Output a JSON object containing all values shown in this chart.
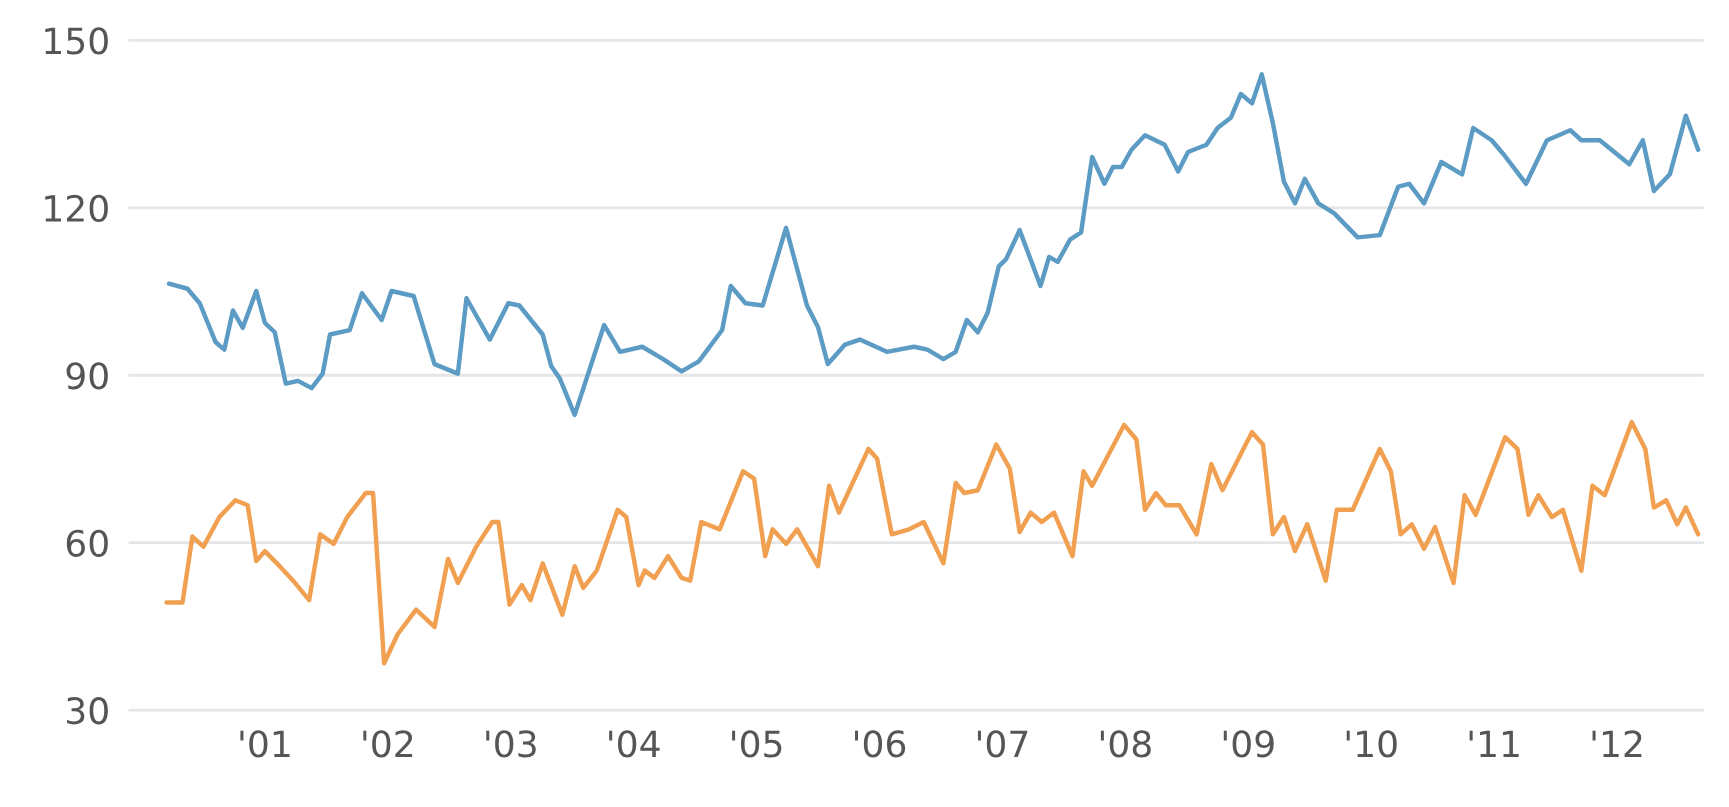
{
  "chart_data": {
    "type": "line",
    "xlim": [
      1999.9,
      2012.7
    ],
    "xticks": [
      {
        "value": 2001,
        "label": "'01"
      },
      {
        "value": 2002,
        "label": "'02"
      },
      {
        "value": 2003,
        "label": "'03"
      },
      {
        "value": 2004,
        "label": "'04"
      },
      {
        "value": 2005,
        "label": "'05"
      },
      {
        "value": 2006,
        "label": "'06"
      },
      {
        "value": 2007,
        "label": "'07"
      },
      {
        "value": 2008,
        "label": "'08"
      },
      {
        "value": 2009,
        "label": "'09"
      },
      {
        "value": 2010,
        "label": "'10"
      },
      {
        "value": 2011,
        "label": "'11"
      },
      {
        "value": 2012,
        "label": "'12"
      }
    ],
    "ylim": [
      30,
      150
    ],
    "yticks": [
      30,
      60,
      90,
      120,
      150
    ],
    "grid": "y",
    "marker": "none",
    "line_style": "solid",
    "series": [
      {
        "color": "#5b9bc4",
        "x": [
          2000.22,
          2000.37,
          2000.47,
          2000.6,
          2000.67,
          2000.74,
          2000.82,
          2000.93,
          2001.0,
          2001.08,
          2001.17,
          2001.27,
          2001.38,
          2001.47,
          2001.53,
          2001.69,
          2001.79,
          2001.95,
          2002.03,
          2002.21,
          2002.38,
          2002.57,
          2002.64,
          2002.83,
          2002.98,
          2003.07,
          2003.26,
          2003.33,
          2003.4,
          2003.52,
          2003.76,
          2003.89,
          2004.07,
          2004.24,
          2004.39,
          2004.53,
          2004.72,
          2004.79,
          2004.91,
          2005.05,
          2005.24,
          2005.41,
          2005.5,
          2005.58,
          2005.72,
          2005.84,
          2006.06,
          2006.28,
          2006.39,
          2006.52,
          2006.62,
          2006.71,
          2006.8,
          2006.88,
          2006.97,
          2007.03,
          2007.14,
          2007.31,
          2007.38,
          2007.45,
          2007.55,
          2007.64,
          2007.73,
          2007.83,
          2007.9,
          2007.97,
          2008.05,
          2008.16,
          2008.32,
          2008.43,
          2008.51,
          2008.66,
          2008.75,
          2008.86,
          2008.94,
          2009.03,
          2009.11,
          2009.2,
          2009.29,
          2009.38,
          2009.46,
          2009.57,
          2009.7,
          2009.89,
          2010.07,
          2010.22,
          2010.31,
          2010.43,
          2010.57,
          2010.74,
          2010.83,
          2010.98,
          2011.08,
          2011.26,
          2011.43,
          2011.62,
          2011.71,
          2011.86,
          2012.1,
          2012.21,
          2012.3,
          2012.43,
          2012.56,
          2012.66
        ],
        "values": [
          106.4,
          105.5,
          102.9,
          95.9,
          94.6,
          101.6,
          98.5,
          105.1,
          99.4,
          97.7,
          88.5,
          89.0,
          87.7,
          90.3,
          97.3,
          98.1,
          104.7,
          99.9,
          105.1,
          104.2,
          92.0,
          90.3,
          103.8,
          96.4,
          102.9,
          102.5,
          97.3,
          91.6,
          89.4,
          82.9,
          99.0,
          94.2,
          95.1,
          92.9,
          90.7,
          92.5,
          98.1,
          106.0,
          102.9,
          102.5,
          116.4,
          102.5,
          98.6,
          92.0,
          95.5,
          96.4,
          94.2,
          95.1,
          94.6,
          92.9,
          94.2,
          99.9,
          97.7,
          101.2,
          109.5,
          110.8,
          116.0,
          106.0,
          111.2,
          110.3,
          114.3,
          115.6,
          129.1,
          124.3,
          127.3,
          127.3,
          130.4,
          133.0,
          131.3,
          126.5,
          130.0,
          131.3,
          134.3,
          136.2,
          140.4,
          138.7,
          143.9,
          135.2,
          124.7,
          120.8,
          125.2,
          120.8,
          119.0,
          114.7,
          115.1,
          123.8,
          124.3,
          120.8,
          128.2,
          126.0,
          134.3,
          132.1,
          129.5,
          124.3,
          132.1,
          133.9,
          132.1,
          132.1,
          127.8,
          132.1,
          123.0,
          126.0,
          136.5,
          130.4
        ]
      },
      {
        "color": "#f0a050",
        "x": [
          2000.2,
          2000.33,
          2000.41,
          2000.5,
          2000.63,
          2000.76,
          2000.86,
          2000.93,
          2001.0,
          2001.12,
          2001.23,
          2001.36,
          2001.45,
          2001.56,
          2001.67,
          2001.82,
          2001.88,
          2001.97,
          2002.08,
          2002.23,
          2002.38,
          2002.49,
          2002.57,
          2002.72,
          2002.85,
          2002.9,
          2002.99,
          2003.09,
          2003.16,
          2003.26,
          2003.42,
          2003.52,
          2003.59,
          2003.7,
          2003.87,
          2003.94,
          2004.04,
          2004.09,
          2004.17,
          2004.28,
          2004.39,
          2004.46,
          2004.55,
          2004.7,
          2004.89,
          2004.98,
          2005.07,
          2005.13,
          2005.24,
          2005.33,
          2005.5,
          2005.59,
          2005.67,
          2005.91,
          2005.98,
          2006.1,
          2006.24,
          2006.36,
          2006.52,
          2006.62,
          2006.69,
          2006.8,
          2006.95,
          2007.06,
          2007.14,
          2007.23,
          2007.32,
          2007.42,
          2007.57,
          2007.66,
          2007.73,
          2007.99,
          2008.09,
          2008.16,
          2008.25,
          2008.33,
          2008.44,
          2008.58,
          2008.7,
          2008.79,
          2009.03,
          2009.12,
          2009.2,
          2009.29,
          2009.38,
          2009.48,
          2009.63,
          2009.72,
          2009.85,
          2010.07,
          2010.16,
          2010.24,
          2010.33,
          2010.43,
          2010.52,
          2010.67,
          2010.76,
          2010.85,
          2011.09,
          2011.19,
          2011.28,
          2011.36,
          2011.47,
          2011.56,
          2011.71,
          2011.8,
          2011.9,
          2012.12,
          2012.23,
          2012.3,
          2012.4,
          2012.49,
          2012.56,
          2012.66
        ],
        "values": [
          49.3,
          49.3,
          61.1,
          59.3,
          64.6,
          67.6,
          66.7,
          56.7,
          58.5,
          55.8,
          53.2,
          49.7,
          61.5,
          59.8,
          64.6,
          68.9,
          68.9,
          38.4,
          43.6,
          48.0,
          44.9,
          57.1,
          52.8,
          59.3,
          63.7,
          63.7,
          48.9,
          52.4,
          49.7,
          56.3,
          47.1,
          55.8,
          51.9,
          55.0,
          65.9,
          64.6,
          52.4,
          55.0,
          53.7,
          57.6,
          53.7,
          53.2,
          63.7,
          62.4,
          72.8,
          71.5,
          57.6,
          62.4,
          59.8,
          62.4,
          55.8,
          70.2,
          65.4,
          76.8,
          75.1,
          61.5,
          62.4,
          63.7,
          56.3,
          70.7,
          68.9,
          69.4,
          77.6,
          73.3,
          61.9,
          65.4,
          63.7,
          65.4,
          57.6,
          72.8,
          70.2,
          81.1,
          78.5,
          65.9,
          68.9,
          66.7,
          66.7,
          61.5,
          74.1,
          69.4,
          79.8,
          77.6,
          61.5,
          64.6,
          58.5,
          63.3,
          53.2,
          65.9,
          65.9,
          76.8,
          72.8,
          61.5,
          63.3,
          58.9,
          62.8,
          52.8,
          68.5,
          65.0,
          78.9,
          76.8,
          65.0,
          68.5,
          64.6,
          65.9,
          55.0,
          70.2,
          68.5,
          81.6,
          76.8,
          66.3,
          67.6,
          63.3,
          66.3,
          61.5
        ]
      }
    ]
  }
}
